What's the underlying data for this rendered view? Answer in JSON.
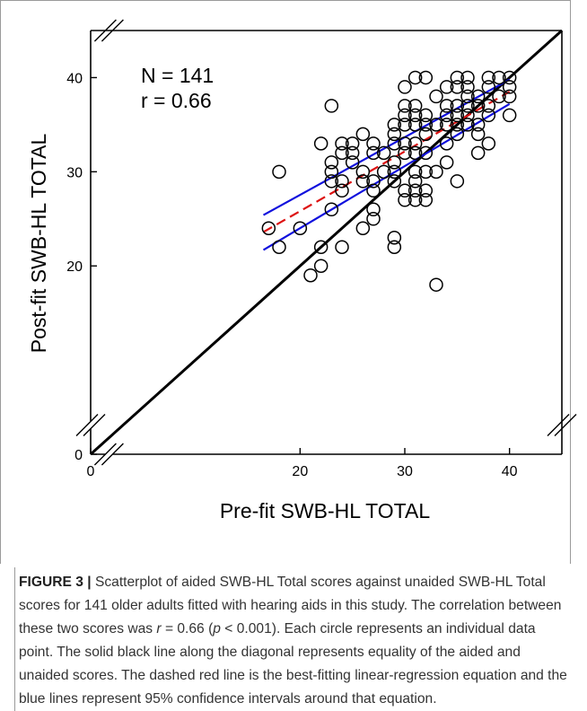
{
  "chart_data": {
    "type": "scatter",
    "title": "",
    "xlabel": "Pre-fit SWB-HL TOTAL",
    "ylabel": "Post-fit SWB-HL TOTAL",
    "xlim": [
      0,
      45
    ],
    "ylim": [
      0,
      45
    ],
    "x_axis_break": true,
    "y_axis_break": true,
    "x_ticks": [
      0,
      20,
      30,
      40
    ],
    "y_ticks": [
      0,
      20,
      30,
      40
    ],
    "x_tick_labels": [
      "0",
      "20",
      "30",
      "40"
    ],
    "y_tick_labels": [
      "0",
      "20",
      "30",
      "40"
    ],
    "grid": false,
    "annotations": [
      "N = 141",
      "r = 0.66"
    ],
    "points": [
      [
        17,
        24
      ],
      [
        18,
        30
      ],
      [
        18,
        22
      ],
      [
        20,
        24
      ],
      [
        21,
        19
      ],
      [
        22,
        33
      ],
      [
        22,
        22
      ],
      [
        22,
        20
      ],
      [
        23,
        37
      ],
      [
        23,
        31
      ],
      [
        23,
        30
      ],
      [
        23,
        29
      ],
      [
        23,
        26
      ],
      [
        24,
        33
      ],
      [
        24,
        32
      ],
      [
        24,
        29
      ],
      [
        24,
        28
      ],
      [
        24,
        22
      ],
      [
        25,
        33
      ],
      [
        25,
        32
      ],
      [
        25,
        31
      ],
      [
        26,
        34
      ],
      [
        26,
        30
      ],
      [
        26,
        29
      ],
      [
        26,
        24
      ],
      [
        27,
        33
      ],
      [
        27,
        32
      ],
      [
        27,
        29
      ],
      [
        27,
        28
      ],
      [
        27,
        26
      ],
      [
        27,
        25
      ],
      [
        28,
        32
      ],
      [
        28,
        30
      ],
      [
        29,
        35
      ],
      [
        29,
        34
      ],
      [
        29,
        33
      ],
      [
        29,
        31
      ],
      [
        29,
        30
      ],
      [
        29,
        29
      ],
      [
        29,
        23
      ],
      [
        29,
        22
      ],
      [
        30,
        39
      ],
      [
        30,
        37
      ],
      [
        30,
        36
      ],
      [
        30,
        35
      ],
      [
        30,
        33
      ],
      [
        30,
        32
      ],
      [
        30,
        28
      ],
      [
        30,
        27
      ],
      [
        31,
        40
      ],
      [
        31,
        37
      ],
      [
        31,
        36
      ],
      [
        31,
        35
      ],
      [
        31,
        33
      ],
      [
        31,
        32
      ],
      [
        31,
        30
      ],
      [
        31,
        29
      ],
      [
        31,
        28
      ],
      [
        31,
        27
      ],
      [
        32,
        40
      ],
      [
        32,
        36
      ],
      [
        32,
        35
      ],
      [
        32,
        34
      ],
      [
        32,
        32
      ],
      [
        32,
        30
      ],
      [
        32,
        28
      ],
      [
        32,
        27
      ],
      [
        33,
        38
      ],
      [
        33,
        35
      ],
      [
        33,
        30
      ],
      [
        33,
        18
      ],
      [
        34,
        39
      ],
      [
        34,
        37
      ],
      [
        34,
        36
      ],
      [
        34,
        35
      ],
      [
        34,
        33
      ],
      [
        34,
        31
      ],
      [
        35,
        40
      ],
      [
        35,
        39
      ],
      [
        35,
        37
      ],
      [
        35,
        36
      ],
      [
        35,
        35
      ],
      [
        35,
        34
      ],
      [
        35,
        29
      ],
      [
        36,
        40
      ],
      [
        36,
        39
      ],
      [
        36,
        38
      ],
      [
        36,
        37
      ],
      [
        36,
        36
      ],
      [
        36,
        35
      ],
      [
        37,
        38
      ],
      [
        37,
        37
      ],
      [
        37,
        35
      ],
      [
        37,
        34
      ],
      [
        37,
        32
      ],
      [
        38,
        40
      ],
      [
        38,
        39
      ],
      [
        38,
        37
      ],
      [
        38,
        36
      ],
      [
        38,
        33
      ],
      [
        39,
        40
      ],
      [
        39,
        38
      ],
      [
        40,
        40
      ],
      [
        40,
        39
      ],
      [
        40,
        38
      ],
      [
        40,
        36
      ]
    ],
    "lines": [
      {
        "role": "equality",
        "style": "solid",
        "color": "#000000",
        "x": [
          0,
          45
        ],
        "y": [
          0,
          45
        ]
      },
      {
        "role": "regression",
        "style": "dashed",
        "color": "#dd1111",
        "x": [
          16.5,
          40
        ],
        "y": [
          23.6,
          38.5
        ]
      },
      {
        "role": "ci-upper",
        "style": "solid",
        "color": "#1010dd",
        "x": [
          16.5,
          40
        ],
        "y": [
          25.4,
          39.8
        ]
      },
      {
        "role": "ci-lower",
        "style": "solid",
        "color": "#1010dd",
        "x": [
          16.5,
          40
        ],
        "y": [
          21.7,
          37.2
        ]
      }
    ]
  },
  "caption": {
    "label": "FIGURE 3 |",
    "text": " Scatterplot of aided SWB-HL Total scores against unaided SWB-HL Total scores for 141 older adults fitted with hearing aids in this study. The correlation between these two scores was ",
    "r_symbol": "r",
    "r_value": " = 0.66 (",
    "p_symbol": "p",
    "p_value": " < 0.001). Each circle represents an individual data point. The solid black line along the diagonal represents equality of the aided and unaided scores. The dashed red line is the best-fitting linear-regression equation and the blue lines represent 95% confidence intervals around that equation."
  }
}
